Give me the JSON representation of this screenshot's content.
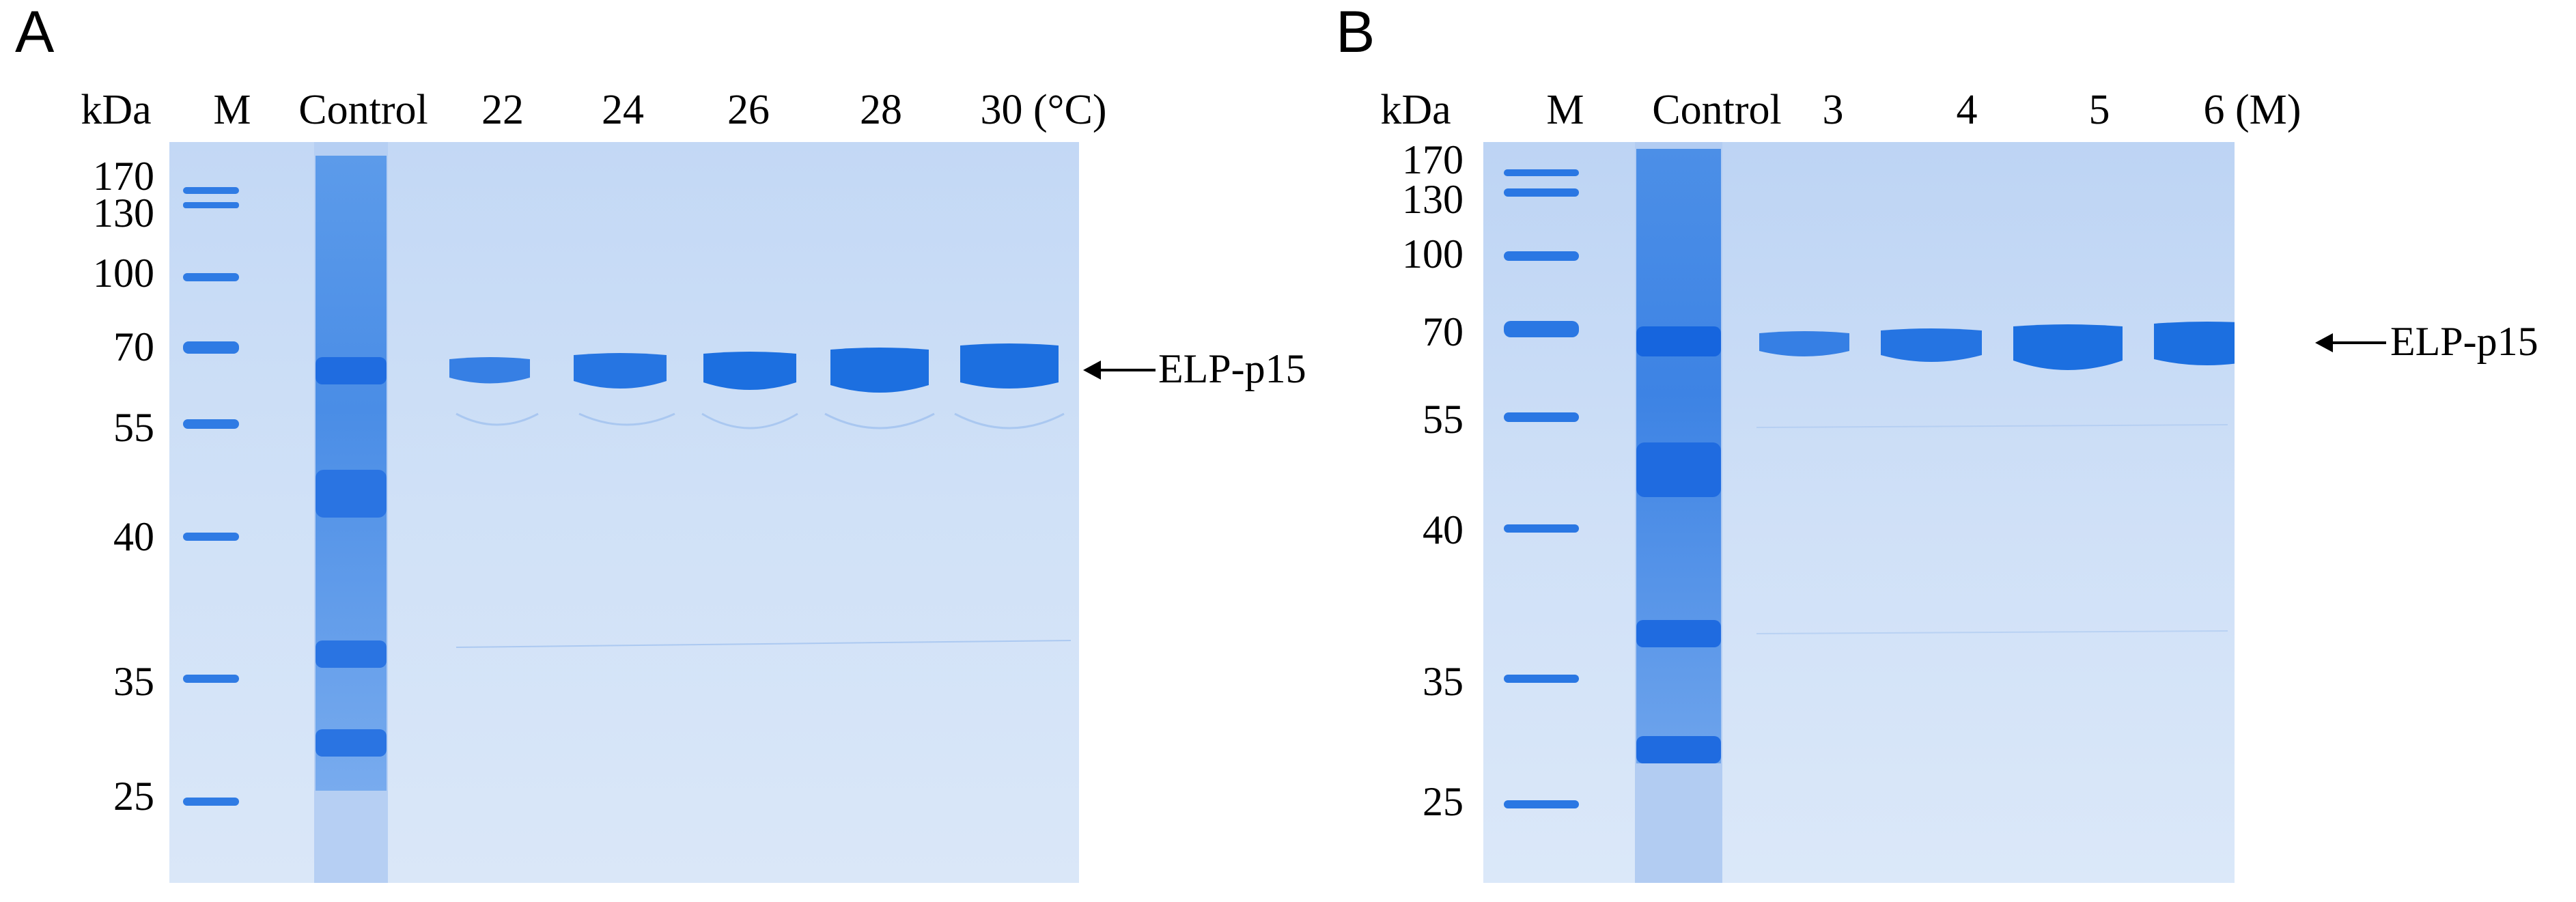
{
  "panels": [
    {
      "letter": "A",
      "kda_label": "kDa",
      "lanes": [
        "M",
        "Control",
        "22",
        "24",
        "26",
        "28",
        "30 (°C)"
      ],
      "mw_markers": [
        "170",
        "130",
        "100",
        "70",
        "55",
        "40",
        "35",
        "25"
      ],
      "target_label": "ELP-p15"
    },
    {
      "letter": "B",
      "kda_label": "kDa",
      "lanes": [
        "M",
        "Control",
        "3",
        "4",
        "5",
        "6 (M)"
      ],
      "mw_markers": [
        "170",
        "130",
        "100",
        "70",
        "55",
        "40",
        "35",
        "25"
      ],
      "target_label": "ELP-p15"
    }
  ],
  "colors": {
    "gel_background": "#cfe0f6",
    "band": "#1c6fe0",
    "band_dark": "#0f5bd0"
  }
}
